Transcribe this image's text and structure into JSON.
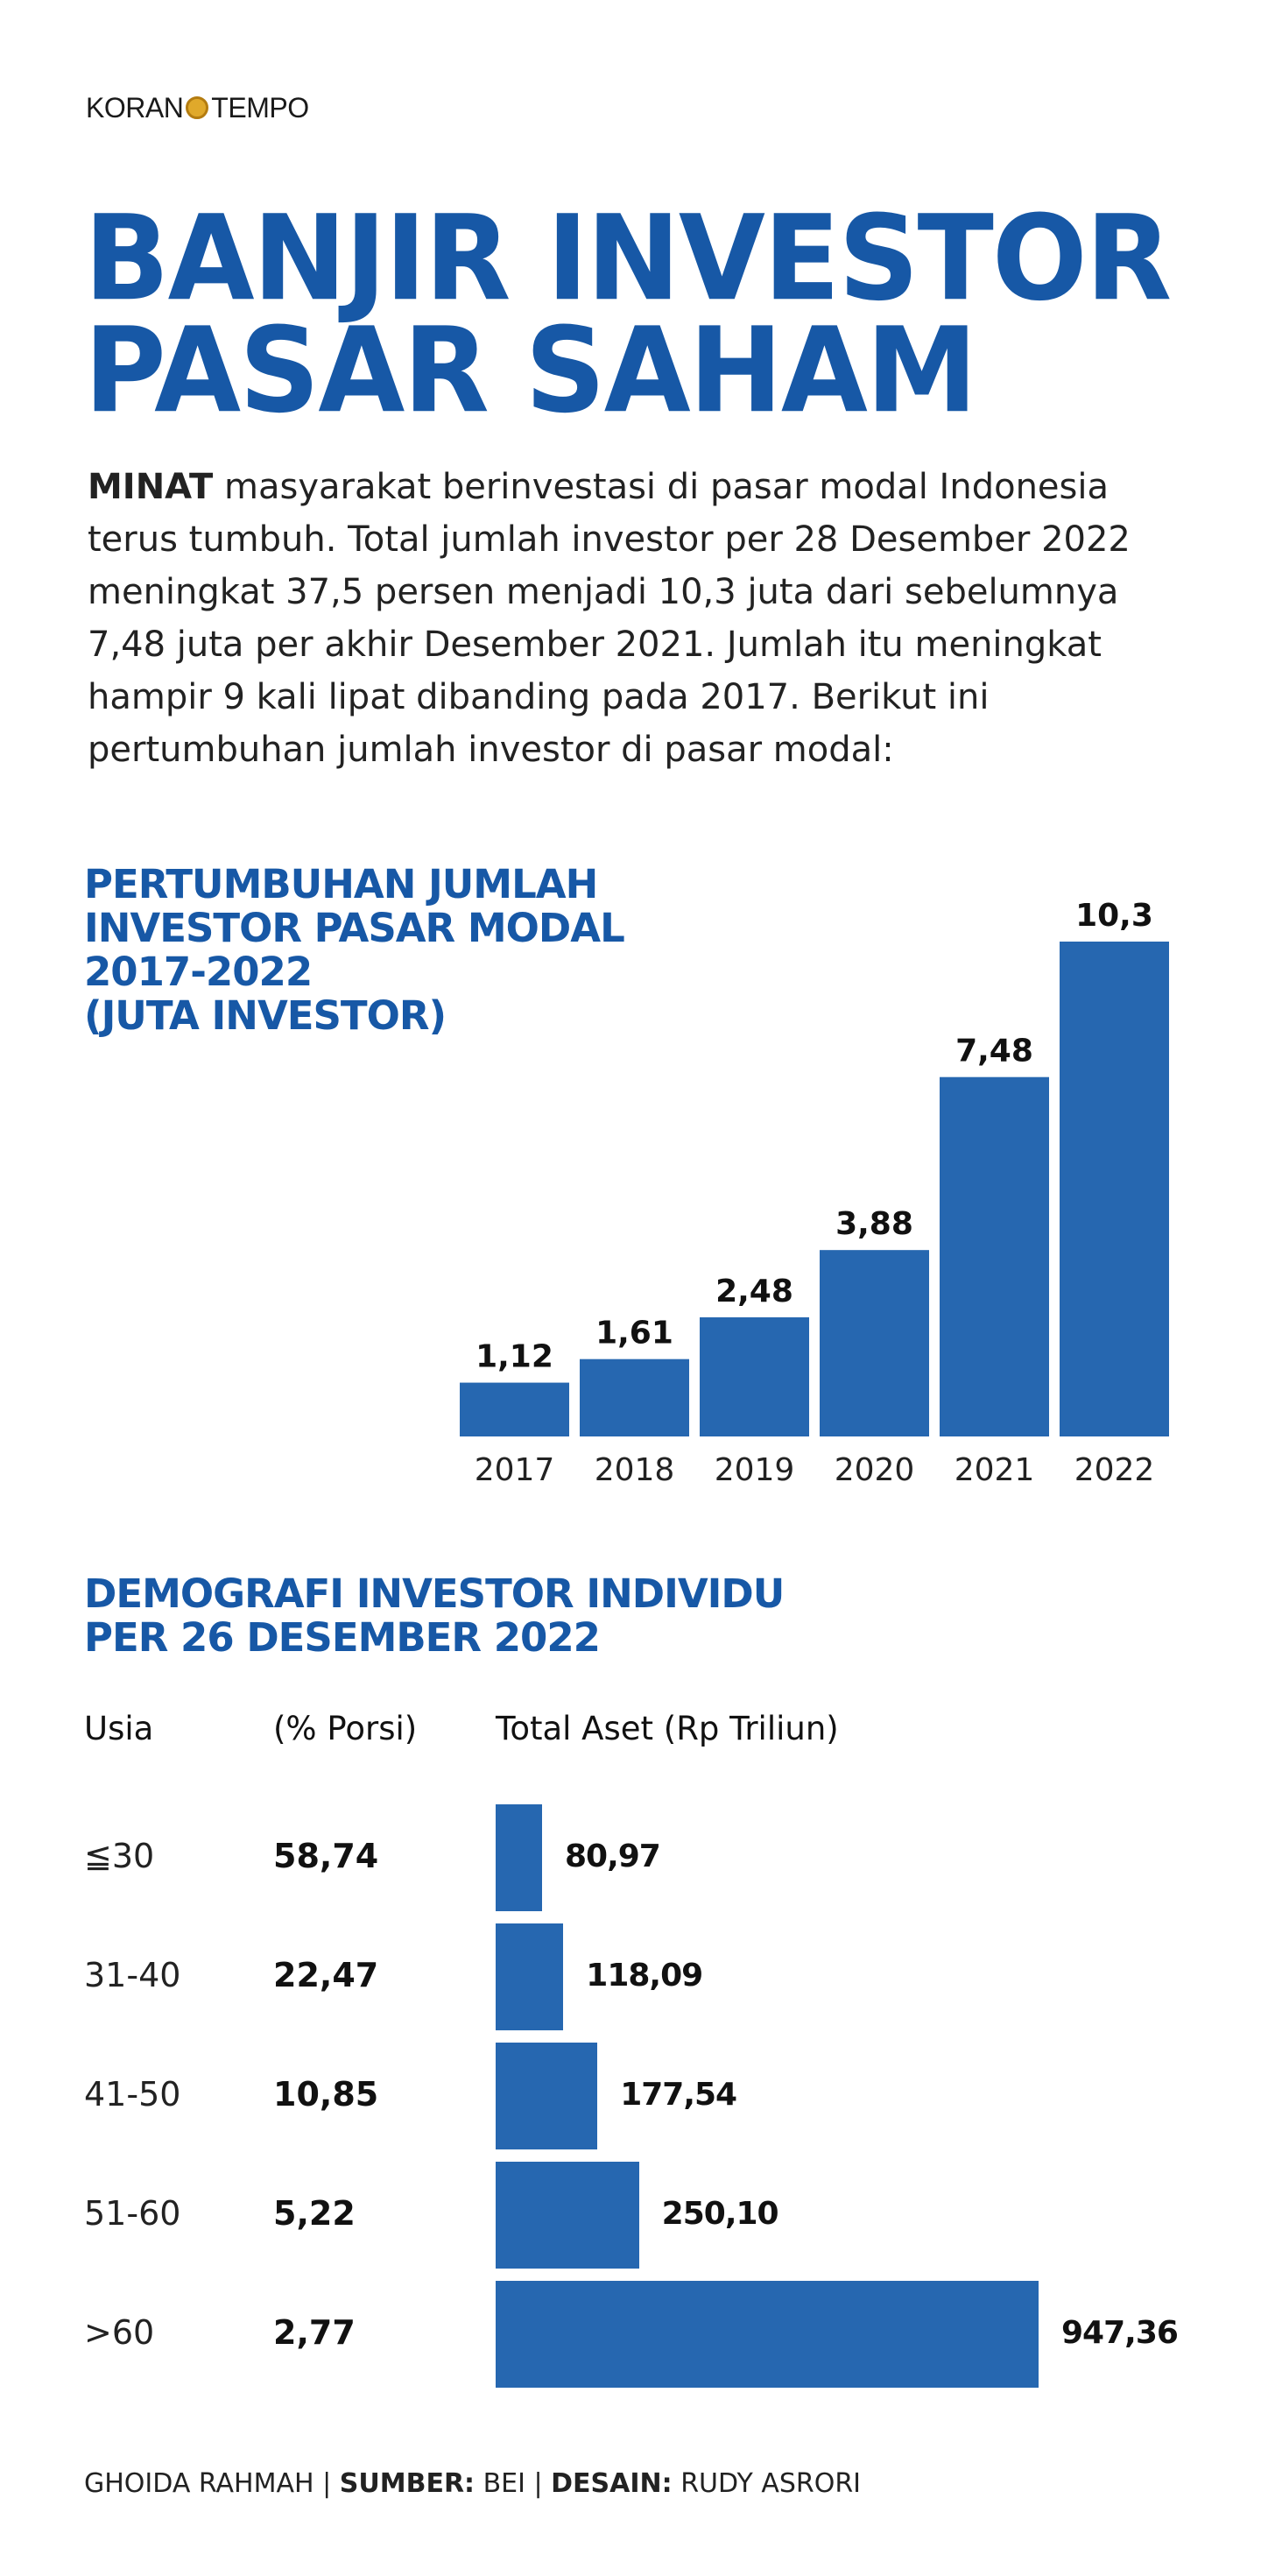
{
  "logo": {
    "left": "KORAN",
    "right": "TEMPO"
  },
  "title": {
    "line1": "BANJIR INVESTOR",
    "line2": "PASAR SAHAM"
  },
  "intro": {
    "lead": "MINAT",
    "text": " masyarakat berinvestasi di pasar modal Indonesia terus tumbuh. Total jumlah investor per 28 Desember 2022 meningkat 37,5 persen menjadi 10,3 juta dari sebelumnya 7,48 juta per akhir Desember 2021. Jumlah itu meningkat hampir 9 kali lipat dibanding pada 2017. Berikut ini pertumbuhan jumlah investor di pasar modal:"
  },
  "colors": {
    "accent": "#1758a6",
    "bar": "#2667b0"
  },
  "chart_data": [
    {
      "type": "bar",
      "title": "PERTUMBUHAN JUMLAH INVESTOR PASAR MODAL 2017-2022 (JUTA INVESTOR)",
      "title_lines": [
        "PERTUMBUHAN JUMLAH",
        "INVESTOR PASAR MODAL",
        "2017-2022",
        "(JUTA INVESTOR)"
      ],
      "categories": [
        "2017",
        "2018",
        "2019",
        "2020",
        "2021",
        "2022"
      ],
      "values": [
        1.12,
        1.61,
        2.48,
        3.88,
        7.48,
        10.3
      ],
      "value_labels": [
        "1,12",
        "1,61",
        "2,48",
        "3,88",
        "7,48",
        "10,3"
      ],
      "ylim": [
        0,
        10.3
      ]
    },
    {
      "type": "table",
      "title": "DEMOGRAFI INVESTOR INDIVIDU PER 26 DESEMBER 2022",
      "title_lines": [
        "DEMOGRAFI INVESTOR INDIVIDU",
        "PER 26 DESEMBER 2022"
      ],
      "columns": [
        "Usia",
        "(% Porsi)",
        "Total Aset (Rp Triliun)"
      ],
      "rows": [
        {
          "age": "≦30",
          "portion": "58,74",
          "assets_label": "80,97",
          "assets": 80.97
        },
        {
          "age": "31-40",
          "portion": "22,47",
          "assets_label": "118,09",
          "assets": 118.09
        },
        {
          "age": "41-50",
          "portion": "10,85",
          "assets_label": "177,54",
          "assets": 177.54
        },
        {
          "age": "51-60",
          "portion": "5,22",
          "assets_label": "250,10",
          "assets": 250.1
        },
        {
          "age": ">60",
          "portion": "2,77",
          "assets_label": "947,36",
          "assets": 947.36
        }
      ],
      "xlim": [
        0,
        947.36
      ]
    }
  ],
  "footer": {
    "author": "GHOIDA RAHMAH | ",
    "source_label": "SUMBER:",
    "source": " BEI | ",
    "design_label": "DESAIN:",
    "designer": " RUDY ASRORI"
  }
}
